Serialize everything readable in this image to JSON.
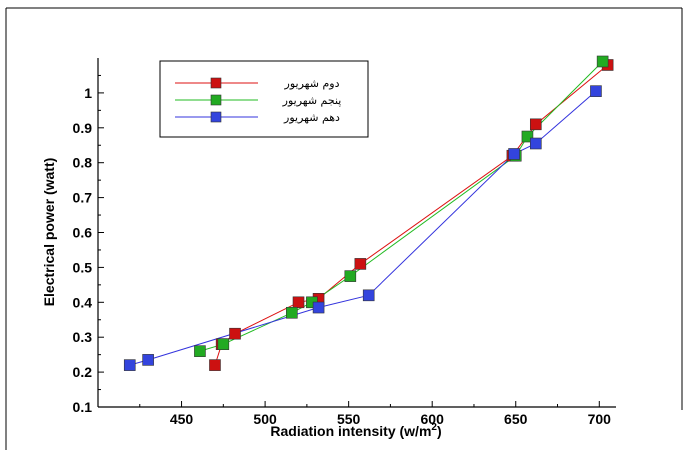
{
  "chart_data": {
    "type": "line",
    "title": "",
    "xlabel": "Radiation intensity (w/m",
    "xlabel_sup": "2",
    "xlabel_close": ")",
    "ylabel": "Electrical power (watt)",
    "xlim": [
      400,
      710
    ],
    "ylim": [
      0.1,
      1.1
    ],
    "x_ticks": [
      450,
      500,
      550,
      600,
      650,
      700
    ],
    "y_ticks": [
      0.1,
      0.2,
      0.3,
      0.4,
      0.5,
      0.6,
      0.7,
      0.8,
      0.9,
      1
    ],
    "grid": false,
    "legend_position": "top-left",
    "series": [
      {
        "name": "دوم شهریور",
        "color": "#dd1111",
        "marker_color": "#cc1111",
        "x": [
          470,
          474,
          482,
          520,
          532,
          557,
          648,
          662,
          705
        ],
        "y": [
          0.22,
          0.28,
          0.31,
          0.4,
          0.41,
          0.51,
          0.82,
          0.91,
          1.08
        ]
      },
      {
        "name": "پنجم شهریور",
        "color": "#22bb22",
        "marker_color": "#22aa22",
        "x": [
          461,
          475,
          516,
          528,
          551,
          650,
          657,
          702
        ],
        "y": [
          0.26,
          0.28,
          0.37,
          0.4,
          0.475,
          0.82,
          0.875,
          1.09
        ]
      },
      {
        "name": "دهم شهریور",
        "color": "#3333dd",
        "marker_color": "#3344dd",
        "x": [
          419,
          430,
          532,
          562,
          649,
          662,
          698
        ],
        "y": [
          0.22,
          0.235,
          0.385,
          0.42,
          0.825,
          0.855,
          1.005
        ]
      }
    ]
  }
}
